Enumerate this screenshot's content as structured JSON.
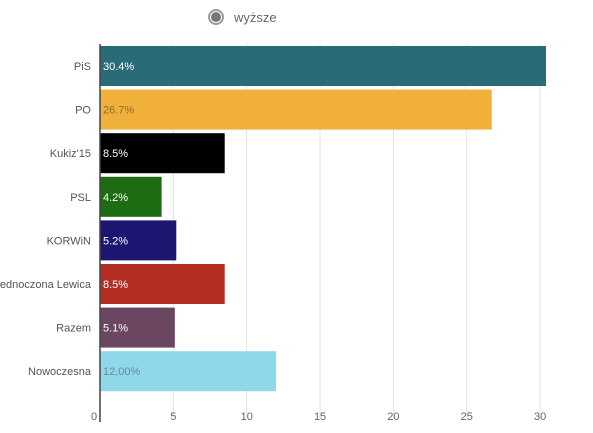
{
  "legend": {
    "label": "wyższe",
    "selected": true
  },
  "chart_data": {
    "type": "bar",
    "orientation": "horizontal",
    "categories": [
      "PiS",
      "PO",
      "Kukiz'15",
      "PSL",
      "KORWiN",
      "Zjednoczona Lewica",
      "Razem",
      "Nowoczesna"
    ],
    "values": [
      30.4,
      26.7,
      8.5,
      4.2,
      5.2,
      8.5,
      5.1,
      12.0
    ],
    "data_labels": [
      "30.4%",
      "26.7%",
      "8.5%",
      "4.2%",
      "5.2%",
      "8.5%",
      "5.1%",
      "12,00%"
    ],
    "colors": [
      "#2a6b78",
      "#f0b03a",
      "#000000",
      "#1d6b12",
      "#1c1670",
      "#b42e24",
      "#6b4661",
      "#8ed8ea"
    ],
    "label_colors": [
      "#ffffff",
      "#8a7030",
      "#ffffff",
      "#ffffff",
      "#ffffff",
      "#ffffff",
      "#ffffff",
      "#6a8a94"
    ],
    "xlim": [
      0,
      30.4
    ],
    "xticks": [
      0,
      5,
      10,
      15,
      20,
      25,
      30
    ],
    "grid": true,
    "legend_position": "top-center"
  }
}
